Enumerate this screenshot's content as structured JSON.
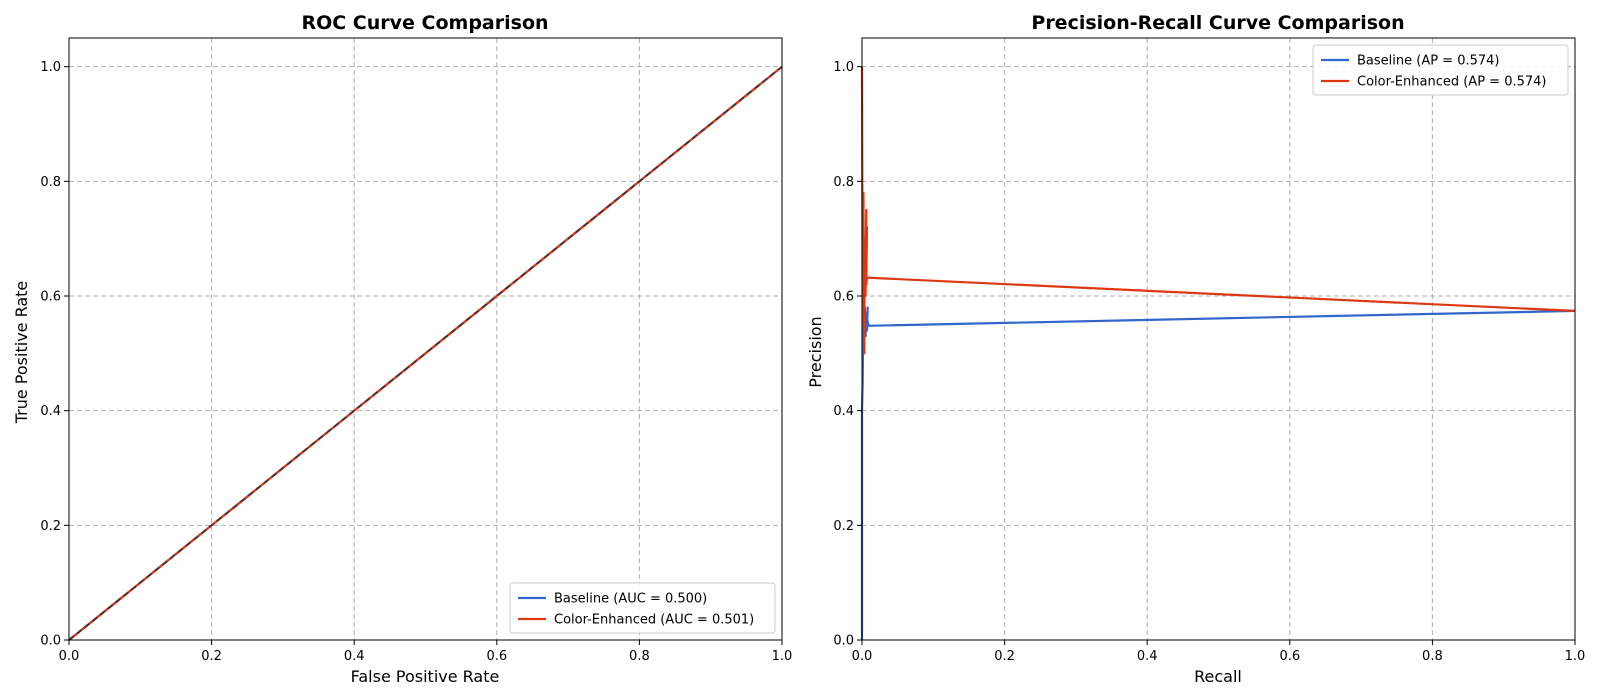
{
  "chart_data": [
    {
      "type": "line",
      "title": "ROC Curve Comparison",
      "xlabel": "False Positive Rate",
      "ylabel": "True Positive Rate",
      "xlim": [
        0,
        1
      ],
      "ylim": [
        0,
        1.05
      ],
      "xticks": [
        "0.0",
        "0.2",
        "0.4",
        "0.6",
        "0.8",
        "1.0"
      ],
      "yticks": [
        "0.0",
        "0.2",
        "0.4",
        "0.6",
        "0.8",
        "1.0"
      ],
      "grid": true,
      "legend_position": "lower-right",
      "series": [
        {
          "name": "Baseline (AUC = 0.500)",
          "color": "#3366cc",
          "x": [
            0,
            0.2,
            0.4,
            0.6,
            0.8,
            1.0
          ],
          "y": [
            0,
            0.2,
            0.4,
            0.6,
            0.8,
            1.0
          ]
        },
        {
          "name": "Color-Enhanced (AUC = 0.501)",
          "color": "#dc3912",
          "x": [
            0,
            0.2,
            0.4,
            0.6,
            0.8,
            1.0
          ],
          "y": [
            0,
            0.2,
            0.4,
            0.6,
            0.8,
            1.0
          ]
        }
      ],
      "reference_line": {
        "color": "#333333",
        "dash": true,
        "x": [
          0,
          1
        ],
        "y": [
          0,
          1
        ]
      }
    },
    {
      "type": "line",
      "title": "Precision-Recall Curve Comparison",
      "xlabel": "Recall",
      "ylabel": "Precision",
      "xlim": [
        0,
        1
      ],
      "ylim": [
        0,
        1.05
      ],
      "xticks": [
        "0.0",
        "0.2",
        "0.4",
        "0.6",
        "0.8",
        "1.0"
      ],
      "yticks": [
        "0.0",
        "0.2",
        "0.4",
        "0.6",
        "0.8",
        "1.0"
      ],
      "grid": true,
      "legend_position": "upper-right",
      "series": [
        {
          "name": "Baseline (AP = 0.574)",
          "color": "#3366cc",
          "x": [
            0,
            0,
            0.001,
            0.002,
            0.003,
            0.004,
            0.005,
            0.006,
            0.007,
            0.008,
            0.007,
            0.009,
            0.007,
            1.0
          ],
          "y": [
            0,
            0.4,
            0.45,
            0.6,
            0.5,
            0.58,
            0.53,
            0.57,
            0.54,
            0.58,
            0.56,
            0.55,
            0.548,
            0.574
          ]
        },
        {
          "name": "Color-Enhanced (AP = 0.574)",
          "color": "#dc3912",
          "x": [
            0,
            0.001,
            0.002,
            0.003,
            0.004,
            0.005,
            0.006,
            0.005,
            0.007,
            0.006,
            0.007,
            1.0
          ],
          "y": [
            1.0,
            0.55,
            0.78,
            0.5,
            0.7,
            0.6,
            0.75,
            0.65,
            0.72,
            0.62,
            0.632,
            0.574
          ]
        }
      ]
    }
  ]
}
